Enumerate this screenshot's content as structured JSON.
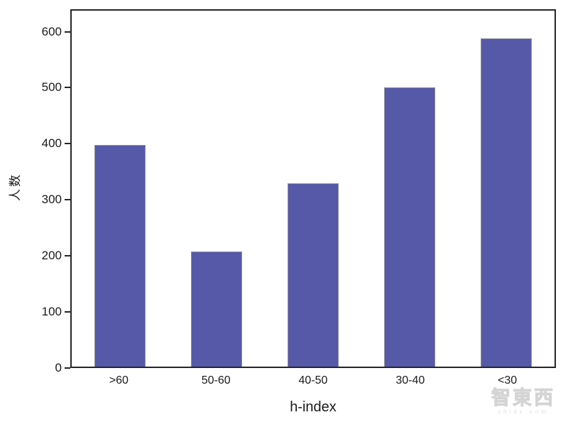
{
  "chart_data": {
    "type": "bar",
    "categories": [
      ">60",
      "50-60",
      "40-50",
      "30-40",
      "<30"
    ],
    "values": [
      398,
      207,
      330,
      502,
      590
    ],
    "title": "",
    "xlabel": "h-index",
    "ylabel": "人数",
    "ylim": [
      0,
      640
    ],
    "yticks": [
      0,
      100,
      200,
      300,
      400,
      500,
      600
    ],
    "grid": false,
    "legend_position": "none",
    "bar_color": "#5659a8",
    "bar_border_color": "#90909e",
    "axis_color": "#262626",
    "text_color": "#1a1a1a"
  },
  "watermark": {
    "logo_text": "智東西",
    "url_text": "zhidx.com"
  }
}
